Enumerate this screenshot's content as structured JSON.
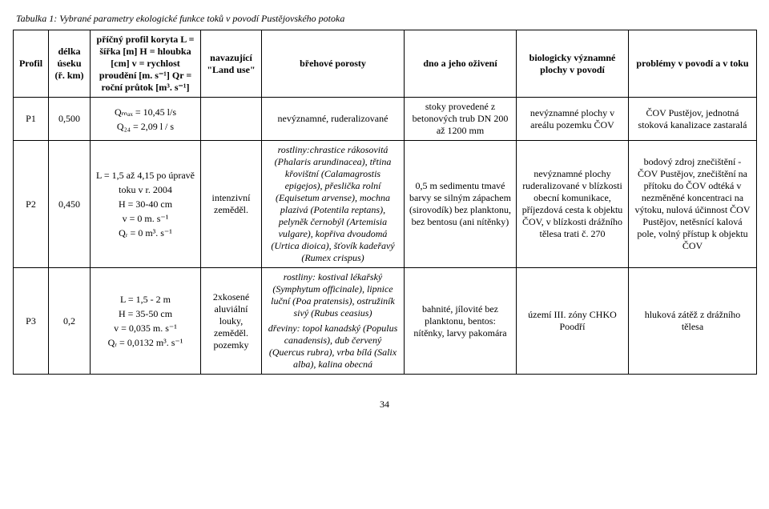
{
  "caption": "Tabulka 1: Vybrané parametry ekologické funkce toků v povodí Pustějovského potoka",
  "columns": {
    "c1": "Profil",
    "c2_l1": "délka",
    "c2_l2": "úseku",
    "c2_l3": "(ř.",
    "c2_l4": "km)",
    "c3_l1": "příčný profil koryta",
    "c3_l2": "L = šířka [m]",
    "c3_l3": "H = hloubka [cm]",
    "c3_l4": "v = rychlost proudění",
    "c3_l5": "[m. s⁻¹]",
    "c3_l6": "Qr = roční průtok",
    "c3_l7": "[m³. s⁻¹]",
    "c4_l1": "navazující",
    "c4_l2": "\"Land",
    "c4_l3": "use\"",
    "c5": "břehové porosty",
    "c6": "dno a jeho oživení",
    "c7_l1": "biologicky",
    "c7_l2": "významné plochy",
    "c7_l3": "v povodí",
    "c8": "problémy v povodí a v toku"
  },
  "rows": [
    {
      "profil": "P1",
      "delka": "0,500",
      "params": [
        "Qₘₐₓ = 10,45 l/s",
        "Q₂₄ = 2,09 l / s"
      ],
      "landuse": "",
      "porosty": "nevýznamné, ruderalizované",
      "dno": "stoky provedené z betonových trub DN 200 až 1200 mm",
      "bioplochy": "nevýznamné plochy v areálu pozemku ČOV",
      "problemy": "ČOV Pustějov, jednotná stoková kanalizace zastaralá"
    },
    {
      "profil": "P2",
      "delka": "0,450",
      "params": [
        "L = 1,5 až 4,15 po úpravě toku v r. 2004",
        "H = 30-40 cm",
        "v = 0 m. s⁻¹",
        "Qᵣ = 0 m³. s⁻¹"
      ],
      "landuse": "intenzivní zeměděl.",
      "porosty": "rostliny:chrastice rákosovitá (Phalaris arundinacea), třtina křovištní (Calamagrostis epigejos), přeslička rolní (Equisetum arvense), mochna plazivá (Potentila reptans), pelyněk černobýl (Artemisia vulgare), kopřiva dvoudomá (Urtica dioica), šťovík kadeřavý (Rumex crispus)",
      "dno": "0,5 m sedimentu tmavé barvy se silným zápachem (sirovodík)  bez planktonu, bez bentosu (ani nítěnky)",
      "bioplochy": "nevýznamné plochy ruderalizované v blízkosti obecní komunikace, příjezdová cesta k objektu ČOV, v blízkosti drážního tělesa trati č. 270",
      "problemy": "bodový zdroj znečištění - ČOV Pustějov, znečištění na přítoku do ČOV odtéká v nezměněné koncentraci na výtoku, nulová účinnost ČOV Pustějov, netěsnící kalová pole, volný přístup k objektu ČOV"
    },
    {
      "profil": "P3",
      "delka": "0,2",
      "params": [
        "L = 1,5 - 2 m",
        "H = 35-50 cm",
        "v = 0,035 m. s⁻¹",
        "Qᵣ = 0,0132 m³. s⁻¹"
      ],
      "landuse": "2xkosené aluviální louky, zeměděl. pozemky",
      "porosty_l1": "rostliny: kostival lékařský (Symphytum officinale), lipnice luční (Poa pratensis), ostružiník sivý (Rubus ceasius)",
      "porosty_l2": "dřeviny: topol kanadský (Populus canadensis), dub červený (Quercus rubra), vrba bílá (Salix alba), kalina obecná",
      "dno": "bahnité, jílovité  bez planktonu, bentos: nítěnky, larvy pakomára",
      "bioplochy": "území III. zóny CHKO Poodří",
      "problemy": "hluková zátěž z drážního tělesa"
    }
  ],
  "pagefoot": "34",
  "colwidths": [
    "44px",
    "52px",
    "138px",
    "76px",
    "178px",
    "140px",
    "140px",
    "160px"
  ],
  "style": {
    "font_family": "Times New Roman",
    "font_size_pt": 12,
    "border_color": "#000000",
    "background_color": "#ffffff"
  }
}
